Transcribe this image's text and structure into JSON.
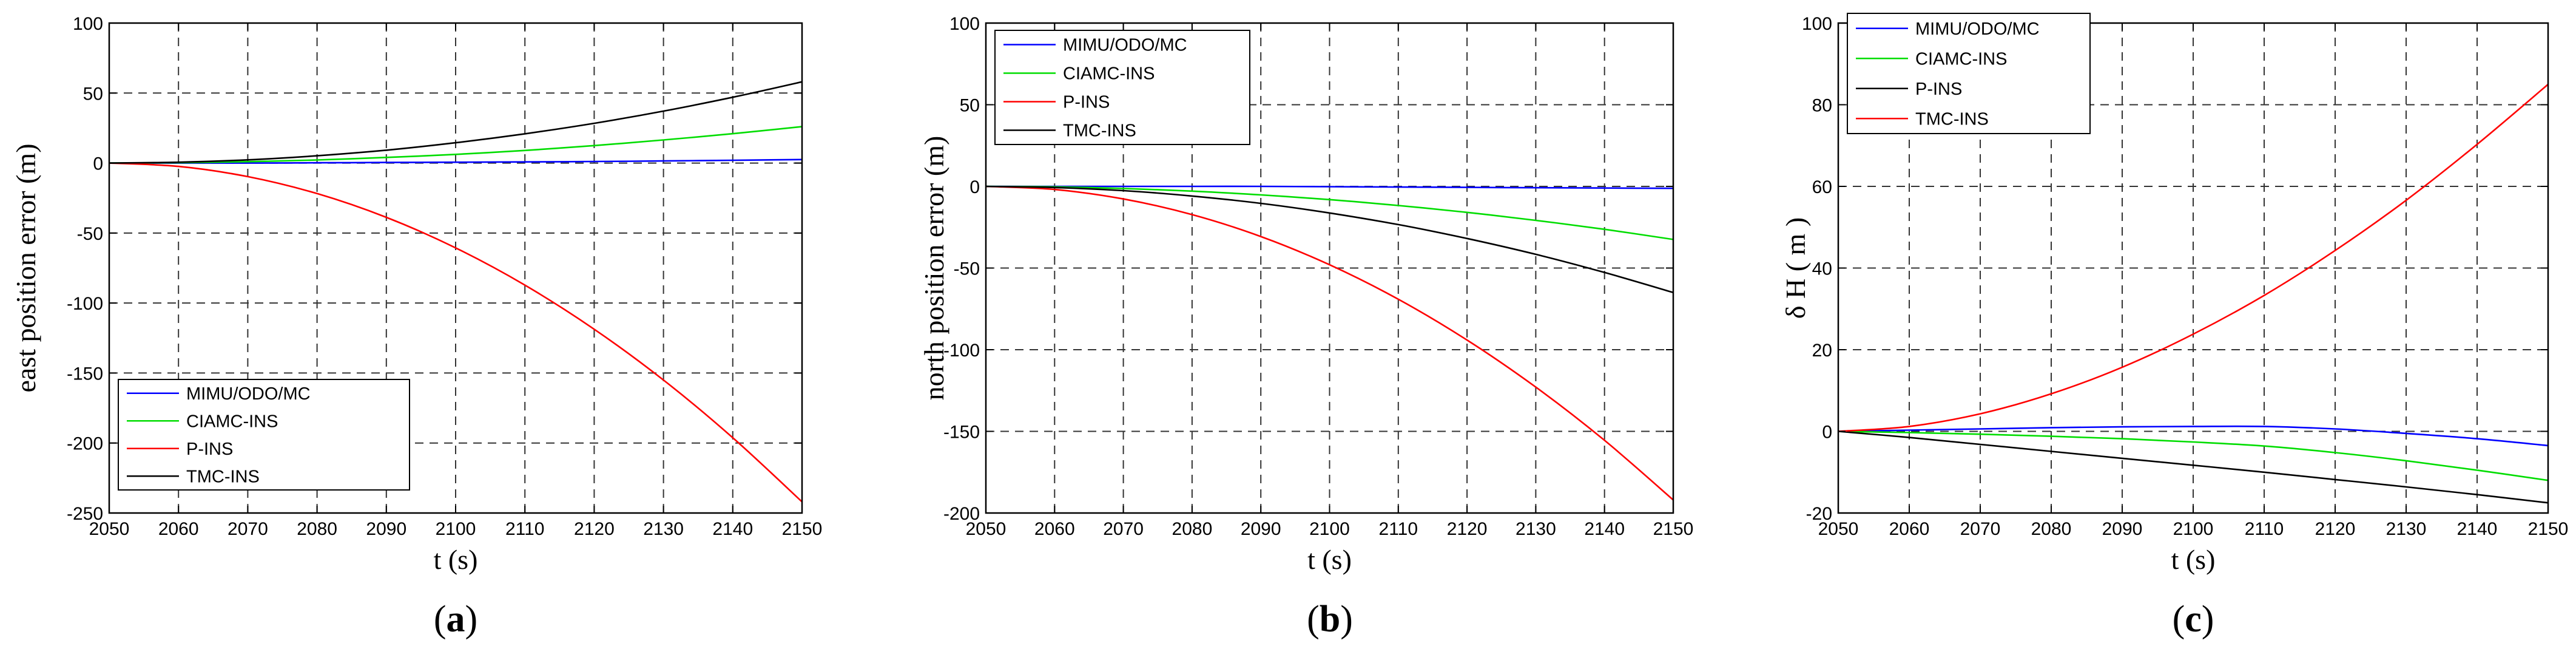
{
  "colors": {
    "mimu": "#0000ff",
    "ciamc": "#00dd00",
    "pins": "#ff0000",
    "tmc": "#000000"
  },
  "chart_data": [
    {
      "type": "line",
      "panel_label": "a",
      "xlabel": "t (s)",
      "ylabel": "east position error (m)",
      "xlim": [
        2050,
        2150
      ],
      "ylim": [
        -250,
        100
      ],
      "xticks": [
        2050,
        2060,
        2070,
        2080,
        2090,
        2100,
        2110,
        2120,
        2130,
        2140,
        2150
      ],
      "yticks": [
        -250,
        -200,
        -150,
        -100,
        -50,
        0,
        50,
        100
      ],
      "grid": true,
      "legend_position": "bottom-left",
      "x": [
        2050,
        2060,
        2070,
        2080,
        2090,
        2100,
        2110,
        2120,
        2130,
        2140,
        2150
      ],
      "series": [
        {
          "name": "MIMU/ODO/MC",
          "color": "mimu",
          "values": [
            0,
            0,
            0,
            0.2,
            0.4,
            0.6,
            0.8,
            1.1,
            1.5,
            2,
            2.5
          ]
        },
        {
          "name": "CIAMC-INS",
          "color": "ciamc",
          "values": [
            0,
            0.3,
            1,
            2.2,
            4,
            6.2,
            9,
            12.5,
            16.5,
            21,
            26
          ]
        },
        {
          "name": "P-INS",
          "color": "pins",
          "values": [
            0,
            -2.4,
            -9.7,
            -21.8,
            -38.8,
            -60.6,
            -87.2,
            -118.7,
            -155,
            -196.2,
            -242
          ]
        },
        {
          "name": "TMC-INS",
          "color": "tmc",
          "values": [
            0,
            0.6,
            2.3,
            5.2,
            9.2,
            14.5,
            20.9,
            28.4,
            37.1,
            47,
            58
          ]
        }
      ]
    },
    {
      "type": "line",
      "panel_label": "b",
      "xlabel": "t (s)",
      "ylabel": "north position error (m)",
      "xlim": [
        2050,
        2150
      ],
      "ylim": [
        -200,
        100
      ],
      "xticks": [
        2050,
        2060,
        2070,
        2080,
        2090,
        2100,
        2110,
        2120,
        2130,
        2140,
        2150
      ],
      "yticks": [
        -200,
        -150,
        -100,
        -50,
        0,
        50,
        100
      ],
      "grid": true,
      "legend_position": "top-left",
      "x": [
        2050,
        2060,
        2070,
        2080,
        2090,
        2100,
        2110,
        2120,
        2130,
        2140,
        2150
      ],
      "series": [
        {
          "name": "MIMU/ODO/MC",
          "color": "mimu",
          "values": [
            0,
            0,
            0,
            0,
            0,
            -0.2,
            -0.4,
            -0.6,
            -0.8,
            -1,
            -1.2
          ]
        },
        {
          "name": "CIAMC-INS",
          "color": "ciamc",
          "values": [
            0,
            -0.3,
            -1.3,
            -2.9,
            -5.2,
            -8.1,
            -11.7,
            -15.9,
            -20.8,
            -26.3,
            -32.5
          ]
        },
        {
          "name": "P-INS",
          "color": "pins",
          "values": [
            0,
            -1.9,
            -7.7,
            -17.3,
            -30.7,
            -48,
            -69.1,
            -94.1,
            -122.9,
            -155.5,
            -192
          ]
        },
        {
          "name": "TMC-INS",
          "color": "tmc",
          "values": [
            0,
            -0.7,
            -2.6,
            -5.9,
            -10.4,
            -16.3,
            -23.4,
            -31.9,
            -41.6,
            -52.7,
            -65
          ]
        }
      ]
    },
    {
      "type": "line",
      "panel_label": "c",
      "xlabel": "t (s)",
      "ylabel": "δ H ( m )",
      "xlim": [
        2050,
        2150
      ],
      "ylim": [
        -20,
        100
      ],
      "xticks": [
        2050,
        2060,
        2070,
        2080,
        2090,
        2100,
        2110,
        2120,
        2130,
        2140,
        2150
      ],
      "yticks": [
        -20,
        0,
        20,
        40,
        60,
        80,
        100
      ],
      "grid": true,
      "legend_position": "top-left",
      "x": [
        2050,
        2060,
        2070,
        2080,
        2090,
        2100,
        2110,
        2120,
        2130,
        2140,
        2150
      ],
      "series": [
        {
          "name": "MIMU/ODO/MC",
          "color": "mimu",
          "values": [
            0,
            0.3,
            0.6,
            0.9,
            1.1,
            1.2,
            1.2,
            0.6,
            -0.5,
            -1.8,
            -3.5
          ]
        },
        {
          "name": "CIAMC-INS",
          "color": "ciamc",
          "values": [
            0,
            -0.3,
            -0.7,
            -1.2,
            -1.8,
            -2.6,
            -3.6,
            -5.2,
            -7.2,
            -9.5,
            -12
          ]
        },
        {
          "name": "P-INS",
          "color": "tmc",
          "values": [
            0,
            -1.5,
            -3.2,
            -4.9,
            -6.6,
            -8.3,
            -10,
            -11.8,
            -13.6,
            -15.5,
            -17.5
          ]
        },
        {
          "name": "TMC-INS",
          "color": "pins",
          "values": [
            0,
            1.2,
            4.3,
            9.2,
            15.7,
            23.8,
            33.3,
            44.3,
            56.6,
            70.3,
            85
          ]
        }
      ]
    }
  ]
}
